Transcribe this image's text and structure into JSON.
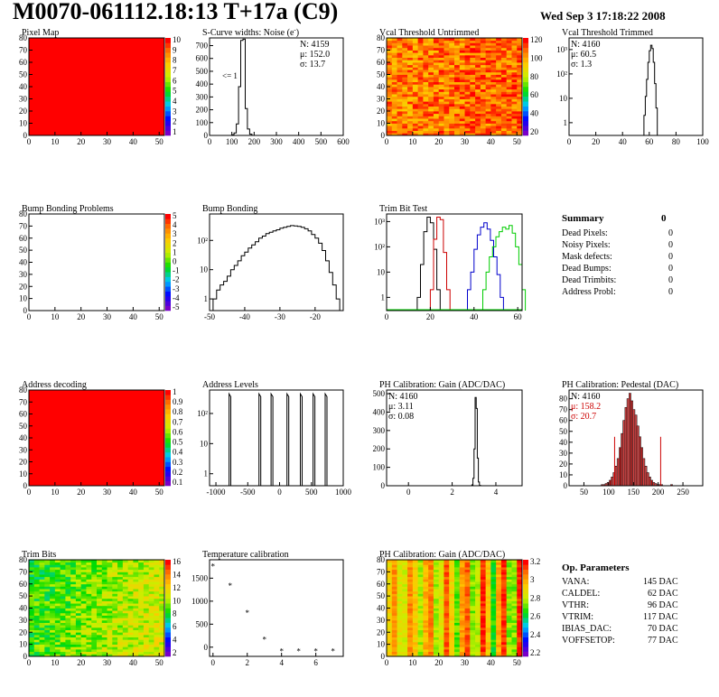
{
  "header": {
    "title": "M0070-061112.18:13 T+17a (C9)",
    "date": "Wed Sep  3 17:18:22 2008"
  },
  "summary": {
    "title": "Summary",
    "value": "0",
    "rows": [
      {
        "label": "Dead Pixels:",
        "value": "0"
      },
      {
        "label": "Noisy Pixels:",
        "value": "0"
      },
      {
        "label": "Mask defects:",
        "value": "0"
      },
      {
        "label": "Dead Bumps:",
        "value": "0"
      },
      {
        "label": "Dead Trimbits:",
        "value": "0"
      },
      {
        "label": "Address Probl:",
        "value": "0"
      }
    ]
  },
  "op_params": {
    "title": "Op. Parameters",
    "rows": [
      {
        "label": "VANA:",
        "value": "145 DAC"
      },
      {
        "label": "CALDEL:",
        "value": "62 DAC"
      },
      {
        "label": "VTHR:",
        "value": "96 DAC"
      },
      {
        "label": "VTRIM:",
        "value": "117 DAC"
      },
      {
        "label": "IBIAS_DAC:",
        "value": "70 DAC"
      },
      {
        "label": "VOFFSETOP:",
        "value": "77 DAC"
      }
    ]
  },
  "colors": {
    "red": "#ff0000",
    "black": "#000000",
    "green": "#00cc00",
    "blue": "#0000cc",
    "pedestal_fill": "#cc0000"
  },
  "chart_data": [
    {
      "id": "pixel_map",
      "type": "heatmap",
      "title": "Pixel Map",
      "x_ticks": [
        "0",
        "10",
        "20",
        "30",
        "40",
        "50"
      ],
      "y_ticks": [
        "0",
        "10",
        "20",
        "30",
        "40",
        "50",
        "60",
        "70",
        "80"
      ],
      "xlim": [
        0,
        52
      ],
      "ylim": [
        0,
        80
      ],
      "fill": "uniform-max",
      "z_ticks": [
        "10",
        "9",
        "8",
        "7",
        "6",
        "5",
        "4",
        "3",
        "2",
        "1"
      ]
    },
    {
      "id": "scurve_noise",
      "type": "bar",
      "title": "S-Curve widths: Noise (e",
      "title_sup": "-",
      "title_end": ")",
      "x_ticks": [
        "0",
        "100",
        "200",
        "300",
        "400",
        "500",
        "600"
      ],
      "y_ticks": [
        "0",
        "100",
        "200",
        "300",
        "400",
        "500",
        "600",
        "700"
      ],
      "xlim": [
        0,
        600
      ],
      "ylim": [
        0,
        760
      ],
      "annotation": "<= 1",
      "stats": [
        "N: 4159",
        "μ: 152.0",
        "σ: 13.7"
      ],
      "hist": {
        "start": 100,
        "step": 10,
        "values": [
          5,
          20,
          90,
          380,
          740,
          750,
          210,
          50,
          10,
          0
        ]
      }
    },
    {
      "id": "vcal_untrimmed",
      "type": "heatmap",
      "title": "Vcal Threshold Untrimmed",
      "x_ticks": [
        "0",
        "10",
        "20",
        "30",
        "40",
        "50"
      ],
      "y_ticks": [
        "0",
        "10",
        "20",
        "30",
        "40",
        "50",
        "60",
        "70",
        "80"
      ],
      "xlim": [
        0,
        52
      ],
      "ylim": [
        0,
        80
      ],
      "fill": "noisy-orange",
      "z_ticks": [
        "120",
        "100",
        "80",
        "60",
        "40",
        "20"
      ]
    },
    {
      "id": "vcal_trimmed",
      "type": "bar",
      "title": "Vcal Threshold Trimmed",
      "x_ticks": [
        "0",
        "20",
        "40",
        "60",
        "80",
        "100"
      ],
      "y_ticks": [
        "1",
        "10",
        "10²",
        "10³"
      ],
      "log": true,
      "xlim": [
        0,
        100
      ],
      "ylim_log": [
        0.3,
        3000
      ],
      "stats": [
        "N: 4160",
        "μ: 60.5",
        "σ: 1.3"
      ],
      "hist": {
        "start": 56,
        "step": 1,
        "values": [
          2,
          12,
          60,
          300,
          900,
          1500,
          1100,
          300,
          40,
          4
        ]
      }
    },
    {
      "id": "bump_problems",
      "type": "heatmap",
      "title": "Bump Bonding Problems",
      "x_ticks": [
        "0",
        "10",
        "20",
        "30",
        "40",
        "50"
      ],
      "y_ticks": [
        "0",
        "10",
        "20",
        "30",
        "40",
        "50",
        "60",
        "70",
        "80"
      ],
      "xlim": [
        0,
        52
      ],
      "ylim": [
        0,
        80
      ],
      "fill": "empty",
      "z_ticks": [
        "5",
        "4",
        "3",
        "2",
        "1",
        "0",
        "-1",
        "-2",
        "-3",
        "-4",
        "-5"
      ]
    },
    {
      "id": "bump_bonding",
      "type": "bar",
      "title": "Bump Bonding",
      "x_ticks": [
        "-50",
        "-40",
        "-30",
        "-20"
      ],
      "y_ticks": [
        "1",
        "10",
        "10²"
      ],
      "log": true,
      "xlim": [
        -50,
        -12
      ],
      "ylim_log": [
        0.4,
        800
      ],
      "hist": {
        "start": -49,
        "step": 1,
        "values": [
          1,
          2,
          3,
          4,
          6,
          10,
          14,
          20,
          30,
          40,
          55,
          70,
          90,
          120,
          140,
          170,
          190,
          210,
          230,
          260,
          280,
          300,
          320,
          310,
          300,
          280,
          250,
          210,
          160,
          120,
          80,
          45,
          20,
          8,
          3,
          1
        ]
      }
    },
    {
      "id": "trim_bit_test",
      "type": "line",
      "title": "Trim Bit Test",
      "x_ticks": [
        "0",
        "20",
        "40",
        "60"
      ],
      "y_ticks": [
        "1",
        "10",
        "10²",
        "10³"
      ],
      "log": true,
      "xlim": [
        0,
        62
      ],
      "ylim_log": [
        0.3,
        2000
      ],
      "series": [
        {
          "color": "#000000",
          "start": 14,
          "values": [
            1,
            20,
            400,
            1500,
            900,
            80,
            2
          ]
        },
        {
          "color": "#cc0000",
          "start": 20,
          "values": [
            2,
            200,
            1500,
            1200,
            60,
            2
          ]
        },
        {
          "color": "#0000cc",
          "start": 37,
          "values": [
            2,
            10,
            80,
            300,
            600,
            900,
            500,
            180,
            40,
            8,
            1
          ]
        },
        {
          "color": "#00cc00",
          "start": 44,
          "values": [
            2,
            10,
            40,
            100,
            250,
            400,
            600,
            500,
            700,
            350,
            100,
            20,
            2
          ]
        }
      ]
    },
    {
      "id": "address_decoding",
      "type": "heatmap",
      "title": "Address decoding",
      "x_ticks": [
        "0",
        "10",
        "20",
        "30",
        "40",
        "50"
      ],
      "y_ticks": [
        "0",
        "10",
        "20",
        "30",
        "40",
        "50",
        "60",
        "70",
        "80"
      ],
      "xlim": [
        0,
        52
      ],
      "ylim": [
        0,
        80
      ],
      "fill": "uniform-max",
      "z_ticks": [
        "1",
        "0.9",
        "0.8",
        "0.7",
        "0.6",
        "0.5",
        "0.4",
        "0.3",
        "0.2",
        "0.1"
      ]
    },
    {
      "id": "address_levels",
      "type": "bar",
      "title": "Address Levels",
      "x_ticks": [
        "-1000",
        "-500",
        "0",
        "500",
        "1000"
      ],
      "y_ticks": [
        "1",
        "10",
        "10²"
      ],
      "log": true,
      "xlim": [
        -1100,
        1000
      ],
      "ylim_log": [
        0.4,
        600
      ],
      "peaks": [
        -780,
        -310,
        -120,
        130,
        340,
        540,
        730
      ],
      "peak_height": 450
    },
    {
      "id": "ph_gain",
      "type": "bar",
      "title": "PH Calibration: Gain (ADC/DAC)",
      "x_ticks": [
        "0",
        "2",
        "4"
      ],
      "y_ticks": [
        "0",
        "100",
        "200",
        "300",
        "400",
        "500"
      ],
      "xlim": [
        -1,
        5.2
      ],
      "ylim": [
        0,
        520
      ],
      "stats": [
        "N: 4160",
        "μ: 3.11",
        "σ: 0.08"
      ],
      "hist": {
        "start": 2.9,
        "step": 0.05,
        "values": [
          5,
          40,
          200,
          480,
          420,
          150,
          20,
          2
        ]
      }
    },
    {
      "id": "ph_pedestal",
      "type": "bar",
      "title": "PH Calibration: Pedestal (DAC)",
      "x_ticks": [
        "50",
        "100",
        "150",
        "200",
        "250"
      ],
      "y_ticks": [
        "0",
        "10",
        "20",
        "30",
        "40",
        "50",
        "60",
        "70",
        "80"
      ],
      "xlim": [
        20,
        290
      ],
      "ylim": [
        0,
        88
      ],
      "stats": [
        "N: 4160",
        "μ: 158.2",
        "σ: 20.7"
      ],
      "fit_lines": [
        112,
        205
      ],
      "hist": {
        "start": 85,
        "step": 4,
        "values": [
          1,
          1,
          2,
          3,
          5,
          8,
          12,
          18,
          25,
          35,
          48,
          60,
          72,
          80,
          85,
          78,
          70,
          65,
          55,
          45,
          35,
          25,
          18,
          12,
          8,
          5,
          3,
          2,
          1,
          1,
          1,
          0,
          0,
          0,
          0,
          1
        ]
      }
    },
    {
      "id": "trim_bits",
      "type": "heatmap",
      "title": "Trim Bits",
      "x_ticks": [
        "0",
        "10",
        "20",
        "30",
        "40",
        "50"
      ],
      "y_ticks": [
        "0",
        "10",
        "20",
        "30",
        "40",
        "50",
        "60",
        "70",
        "80"
      ],
      "xlim": [
        0,
        52
      ],
      "ylim": [
        0,
        80
      ],
      "fill": "noisy-green",
      "z_ticks": [
        "16",
        "14",
        "12",
        "10",
        "8",
        "6",
        "4",
        "2"
      ]
    },
    {
      "id": "temp_calibration",
      "type": "scatter",
      "title": "Temperature calibration",
      "x_ticks": [
        "0",
        "2",
        "4",
        "6"
      ],
      "y_ticks": [
        "0",
        "500",
        "1000",
        "1500"
      ],
      "xlim": [
        -0.2,
        7.6
      ],
      "ylim": [
        -200,
        1900
      ],
      "points": [
        [
          0,
          1770
        ],
        [
          1,
          1350
        ],
        [
          2,
          760
        ],
        [
          3,
          180
        ],
        [
          4,
          -70
        ],
        [
          5,
          -70
        ],
        [
          6,
          -70
        ],
        [
          7,
          -70
        ]
      ]
    },
    {
      "id": "ph_gain_map",
      "type": "heatmap",
      "title": "PH Calibration: Gain (ADC/DAC)",
      "x_ticks": [
        "0",
        "10",
        "20",
        "30",
        "40",
        "50"
      ],
      "y_ticks": [
        "0",
        "10",
        "20",
        "30",
        "40",
        "50",
        "60",
        "70",
        "80"
      ],
      "xlim": [
        0,
        52
      ],
      "ylim": [
        0,
        80
      ],
      "fill": "columns",
      "z_ticks": [
        "3.2",
        "3",
        "2.8",
        "2.6",
        "2.4",
        "2.2"
      ]
    }
  ]
}
